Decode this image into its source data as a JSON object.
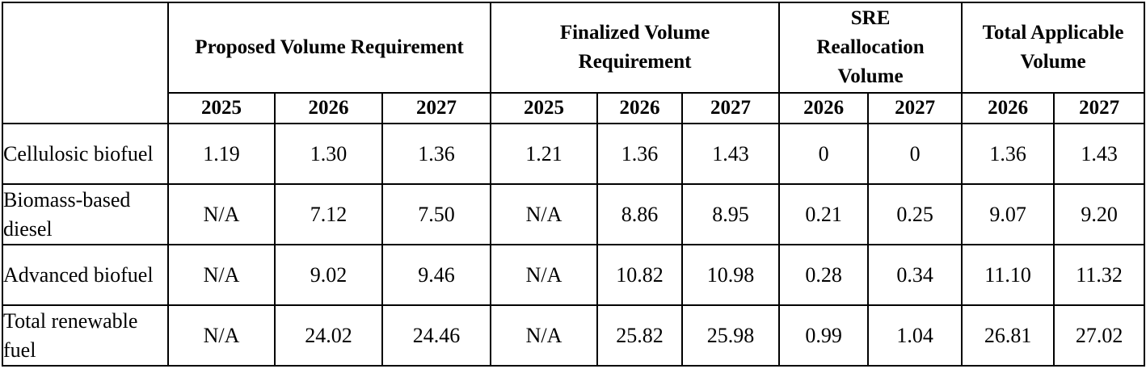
{
  "table": {
    "groups": [
      {
        "label": "Proposed Volume Requirement",
        "years": [
          "2025",
          "2026",
          "2027"
        ]
      },
      {
        "label": "Finalized Volume Requirement",
        "years": [
          "2025",
          "2026",
          "2027"
        ]
      },
      {
        "label": "SRE Reallocation Volume",
        "years": [
          "2026",
          "2027"
        ]
      },
      {
        "label": "Total Applicable Volume",
        "years": [
          "2026",
          "2027"
        ]
      }
    ],
    "rows": [
      {
        "label": "Cellulosic biofuel",
        "cells": [
          "1.19",
          "1.30",
          "1.36",
          "1.21",
          "1.36",
          "1.43",
          "0",
          "0",
          "1.36",
          "1.43"
        ]
      },
      {
        "label": "Biomass-based diesel",
        "cells": [
          "N/A",
          "7.12",
          "7.50",
          "N/A",
          "8.86",
          "8.95",
          "0.21",
          "0.25",
          "9.07",
          "9.20"
        ]
      },
      {
        "label": "Advanced biofuel",
        "cells": [
          "N/A",
          "9.02",
          "9.46",
          "N/A",
          "10.82",
          "10.98",
          "0.28",
          "0.34",
          "11.10",
          "11.32"
        ]
      },
      {
        "label": "Total renewable fuel",
        "cells": [
          "N/A",
          "24.02",
          "24.46",
          "N/A",
          "25.82",
          "25.98",
          "0.99",
          "1.04",
          "26.81",
          "27.02"
        ]
      }
    ]
  }
}
